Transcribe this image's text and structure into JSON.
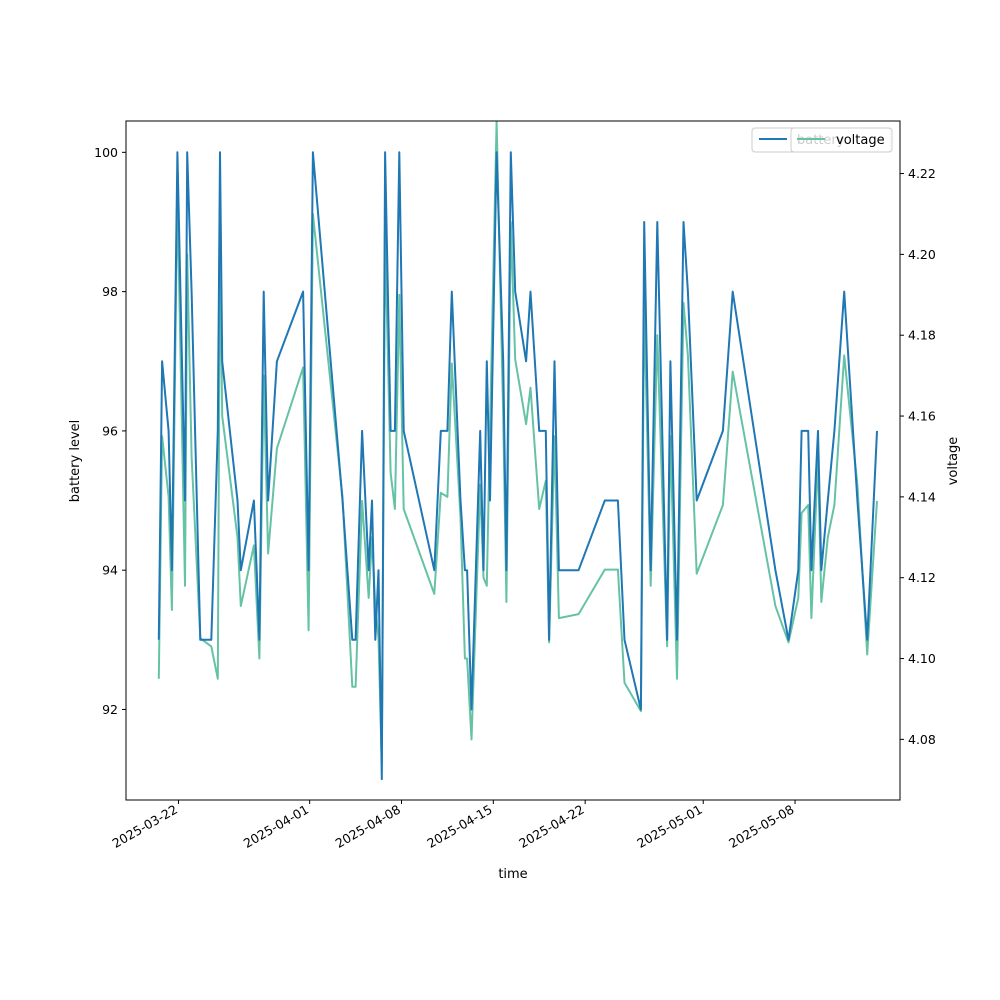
{
  "colors": {
    "battery": "#1f77b4",
    "voltage": "#66c2a5",
    "axes": "#000000",
    "background": "#ffffff"
  },
  "chart_data": {
    "type": "line",
    "xlabel": "time",
    "ylabel_left": "battery level",
    "ylabel_right": "voltage",
    "x_type": "date",
    "xlim": [
      "2025-03-18",
      "2025-05-16"
    ],
    "ylim_left": [
      90.7,
      100.45
    ],
    "ylim_right": [
      4.065,
      4.233
    ],
    "x_ticks": [
      "2025-03-22",
      "2025-04-01",
      "2025-04-08",
      "2025-04-15",
      "2025-04-22",
      "2025-05-01",
      "2025-05-08"
    ],
    "y_ticks_left": [
      "92",
      "94",
      "96",
      "98",
      "100"
    ],
    "y_ticks_right": [
      "4.08",
      "4.10",
      "4.12",
      "4.14",
      "4.16",
      "4.18",
      "4.20",
      "4.22"
    ],
    "grid": false,
    "legend": {
      "position": "top-right",
      "entries": [
        "battery",
        "voltage"
      ]
    },
    "series": [
      {
        "name": "battery",
        "axis": "left",
        "points": [
          [
            "2025-03-20 12:00",
            93
          ],
          [
            "2025-03-20 18:00",
            97
          ],
          [
            "2025-03-21 06:00",
            96
          ],
          [
            "2025-03-21 12:00",
            94
          ],
          [
            "2025-03-21 22:00",
            100
          ],
          [
            "2025-03-22 12:00",
            95
          ],
          [
            "2025-03-22 16:00",
            100
          ],
          [
            "2025-03-23 00:00",
            98
          ],
          [
            "2025-03-23 16:00",
            93
          ],
          [
            "2025-03-24 12:00",
            93
          ],
          [
            "2025-03-25 00:00",
            96
          ],
          [
            "2025-03-25 04:00",
            100
          ],
          [
            "2025-03-25 08:00",
            97
          ],
          [
            "2025-03-26 12:00",
            95
          ],
          [
            "2025-03-26 18:00",
            94
          ],
          [
            "2025-03-27 18:00",
            95
          ],
          [
            "2025-03-28 04:00",
            93
          ],
          [
            "2025-03-28 12:00",
            98
          ],
          [
            "2025-03-28 20:00",
            95
          ],
          [
            "2025-03-29 12:00",
            97
          ],
          [
            "2025-03-31 12:00",
            98
          ],
          [
            "2025-03-31 22:00",
            94
          ],
          [
            "2025-04-01 06:00",
            100
          ],
          [
            "2025-04-03 12:00",
            95
          ],
          [
            "2025-04-04 06:00",
            93
          ],
          [
            "2025-04-04 12:00",
            93
          ],
          [
            "2025-04-05 00:00",
            96
          ],
          [
            "2025-04-05 12:00",
            94
          ],
          [
            "2025-04-05 18:00",
            95
          ],
          [
            "2025-04-06 00:00",
            93
          ],
          [
            "2025-04-06 06:00",
            94
          ],
          [
            "2025-04-06 12:00",
            91
          ],
          [
            "2025-04-06 18:00",
            100
          ],
          [
            "2025-04-07 04:00",
            96
          ],
          [
            "2025-04-07 12:00",
            96
          ],
          [
            "2025-04-07 20:00",
            100
          ],
          [
            "2025-04-08 04:00",
            96
          ],
          [
            "2025-04-10 12:00",
            94
          ],
          [
            "2025-04-11 00:00",
            96
          ],
          [
            "2025-04-11 12:00",
            96
          ],
          [
            "2025-04-11 20:00",
            98
          ],
          [
            "2025-04-12 12:00",
            95
          ],
          [
            "2025-04-12 20:00",
            94
          ],
          [
            "2025-04-13 00:00",
            94
          ],
          [
            "2025-04-13 08:00",
            92
          ],
          [
            "2025-04-14 00:00",
            96
          ],
          [
            "2025-04-14 06:00",
            94
          ],
          [
            "2025-04-14 12:00",
            97
          ],
          [
            "2025-04-14 18:00",
            95
          ],
          [
            "2025-04-15 06:00",
            100
          ],
          [
            "2025-04-15 18:00",
            97
          ],
          [
            "2025-04-16 00:00",
            94
          ],
          [
            "2025-04-16 08:00",
            100
          ],
          [
            "2025-04-16 16:00",
            98
          ],
          [
            "2025-04-17 12:00",
            97
          ],
          [
            "2025-04-17 20:00",
            98
          ],
          [
            "2025-04-18 12:00",
            96
          ],
          [
            "2025-04-19 00:00",
            96
          ],
          [
            "2025-04-19 06:00",
            93
          ],
          [
            "2025-04-19 16:00",
            97
          ],
          [
            "2025-04-20 00:00",
            94
          ],
          [
            "2025-04-21 12:00",
            94
          ],
          [
            "2025-04-23 12:00",
            95
          ],
          [
            "2025-04-24 12:00",
            95
          ],
          [
            "2025-04-25 00:00",
            93
          ],
          [
            "2025-04-26 06:00",
            92
          ],
          [
            "2025-04-26 12:00",
            99
          ],
          [
            "2025-04-27 00:00",
            94
          ],
          [
            "2025-04-27 12:00",
            99
          ],
          [
            "2025-04-28 06:00",
            93
          ],
          [
            "2025-04-28 12:00",
            97
          ],
          [
            "2025-04-29 00:00",
            93
          ],
          [
            "2025-04-29 12:00",
            99
          ],
          [
            "2025-04-29 20:00",
            98
          ],
          [
            "2025-04-30 12:00",
            95
          ],
          [
            "2025-05-02 12:00",
            96
          ],
          [
            "2025-05-03 06:00",
            98
          ],
          [
            "2025-05-06 12:00",
            94
          ],
          [
            "2025-05-07 12:00",
            93
          ],
          [
            "2025-05-08 06:00",
            94
          ],
          [
            "2025-05-08 12:00",
            96
          ],
          [
            "2025-05-09 00:00",
            96
          ],
          [
            "2025-05-09 06:00",
            94
          ],
          [
            "2025-05-09 18:00",
            96
          ],
          [
            "2025-05-10 00:00",
            94
          ],
          [
            "2025-05-10 12:00",
            95
          ],
          [
            "2025-05-11 00:00",
            96
          ],
          [
            "2025-05-11 18:00",
            98
          ],
          [
            "2025-05-12 18:00",
            95
          ],
          [
            "2025-05-13 12:00",
            93
          ],
          [
            "2025-05-14 06:00",
            96
          ]
        ]
      },
      {
        "name": "voltage",
        "axis": "right",
        "points": [
          [
            "2025-03-20 12:00",
            4.095
          ],
          [
            "2025-03-20 18:00",
            4.155
          ],
          [
            "2025-03-21 06:00",
            4.14
          ],
          [
            "2025-03-21 12:00",
            4.112
          ],
          [
            "2025-03-21 22:00",
            4.215
          ],
          [
            "2025-03-22 12:00",
            4.118
          ],
          [
            "2025-03-22 16:00",
            4.2
          ],
          [
            "2025-03-23 00:00",
            4.15
          ],
          [
            "2025-03-23 16:00",
            4.105
          ],
          [
            "2025-03-24 12:00",
            4.103
          ],
          [
            "2025-03-25 00:00",
            4.095
          ],
          [
            "2025-03-25 04:00",
            4.205
          ],
          [
            "2025-03-25 08:00",
            4.16
          ],
          [
            "2025-03-26 12:00",
            4.13
          ],
          [
            "2025-03-26 18:00",
            4.113
          ],
          [
            "2025-03-27 18:00",
            4.128
          ],
          [
            "2025-03-28 04:00",
            4.1
          ],
          [
            "2025-03-28 12:00",
            4.17
          ],
          [
            "2025-03-28 20:00",
            4.126
          ],
          [
            "2025-03-29 12:00",
            4.152
          ],
          [
            "2025-03-31 12:00",
            4.172
          ],
          [
            "2025-03-31 22:00",
            4.107
          ],
          [
            "2025-04-01 06:00",
            4.21
          ],
          [
            "2025-04-03 12:00",
            4.14
          ],
          [
            "2025-04-04 06:00",
            4.093
          ],
          [
            "2025-04-04 12:00",
            4.093
          ],
          [
            "2025-04-05 00:00",
            4.139
          ],
          [
            "2025-04-05 12:00",
            4.115
          ],
          [
            "2025-04-05 18:00",
            4.13
          ],
          [
            "2025-04-06 00:00",
            4.113
          ],
          [
            "2025-04-06 06:00",
            4.105
          ],
          [
            "2025-04-06 12:00",
            4.074
          ],
          [
            "2025-04-06 18:00",
            4.205
          ],
          [
            "2025-04-07 04:00",
            4.146
          ],
          [
            "2025-04-07 12:00",
            4.137
          ],
          [
            "2025-04-07 20:00",
            4.19
          ],
          [
            "2025-04-08 04:00",
            4.137
          ],
          [
            "2025-04-10 12:00",
            4.116
          ],
          [
            "2025-04-11 00:00",
            4.141
          ],
          [
            "2025-04-11 12:00",
            4.14
          ],
          [
            "2025-04-11 20:00",
            4.173
          ],
          [
            "2025-04-12 12:00",
            4.135
          ],
          [
            "2025-04-12 20:00",
            4.1
          ],
          [
            "2025-04-13 00:00",
            4.1
          ],
          [
            "2025-04-13 08:00",
            4.08
          ],
          [
            "2025-04-14 00:00",
            4.143
          ],
          [
            "2025-04-14 06:00",
            4.12
          ],
          [
            "2025-04-14 12:00",
            4.118
          ],
          [
            "2025-04-14 18:00",
            4.157
          ],
          [
            "2025-04-15 06:00",
            4.233
          ],
          [
            "2025-04-15 18:00",
            4.16
          ],
          [
            "2025-04-16 00:00",
            4.114
          ],
          [
            "2025-04-16 08:00",
            4.208
          ],
          [
            "2025-04-16 16:00",
            4.174
          ],
          [
            "2025-04-17 12:00",
            4.158
          ],
          [
            "2025-04-17 20:00",
            4.167
          ],
          [
            "2025-04-18 12:00",
            4.137
          ],
          [
            "2025-04-19 00:00",
            4.144
          ],
          [
            "2025-04-19 06:00",
            4.104
          ],
          [
            "2025-04-19 16:00",
            4.155
          ],
          [
            "2025-04-20 00:00",
            4.11
          ],
          [
            "2025-04-21 12:00",
            4.111
          ],
          [
            "2025-04-23 12:00",
            4.122
          ],
          [
            "2025-04-24 12:00",
            4.122
          ],
          [
            "2025-04-25 00:00",
            4.094
          ],
          [
            "2025-04-26 06:00",
            4.087
          ],
          [
            "2025-04-26 12:00",
            4.188
          ],
          [
            "2025-04-27 00:00",
            4.118
          ],
          [
            "2025-04-27 12:00",
            4.18
          ],
          [
            "2025-04-28 06:00",
            4.103
          ],
          [
            "2025-04-28 12:00",
            4.155
          ],
          [
            "2025-04-29 00:00",
            4.095
          ],
          [
            "2025-04-29 12:00",
            4.188
          ],
          [
            "2025-04-29 20:00",
            4.175
          ],
          [
            "2025-04-30 12:00",
            4.121
          ],
          [
            "2025-05-02 12:00",
            4.138
          ],
          [
            "2025-05-03 06:00",
            4.171
          ],
          [
            "2025-05-06 12:00",
            4.113
          ],
          [
            "2025-05-07 12:00",
            4.104
          ],
          [
            "2025-05-08 06:00",
            4.115
          ],
          [
            "2025-05-08 12:00",
            4.136
          ],
          [
            "2025-05-09 00:00",
            4.138
          ],
          [
            "2025-05-09 06:00",
            4.11
          ],
          [
            "2025-05-09 18:00",
            4.15
          ],
          [
            "2025-05-10 00:00",
            4.114
          ],
          [
            "2025-05-10 12:00",
            4.13
          ],
          [
            "2025-05-11 00:00",
            4.138
          ],
          [
            "2025-05-11 18:00",
            4.175
          ],
          [
            "2025-05-12 18:00",
            4.143
          ],
          [
            "2025-05-13 12:00",
            4.101
          ],
          [
            "2025-05-14 06:00",
            4.139
          ]
        ]
      }
    ]
  }
}
